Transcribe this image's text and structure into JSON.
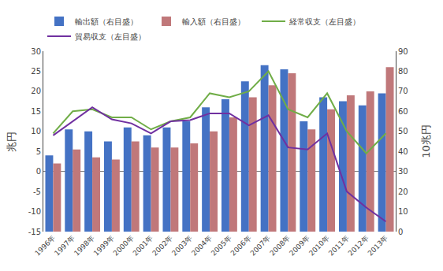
{
  "chart_data": {
    "type": "bar",
    "categories": [
      "1996年",
      "1997年",
      "1998年",
      "1999年",
      "2000年",
      "2001年",
      "2002年",
      "2003年",
      "2004年",
      "2005年",
      "2006年",
      "2007年",
      "2008年",
      "2009年",
      "2010年",
      "2011年",
      "2012年",
      "2013年"
    ],
    "series": [
      {
        "name": "輸出額（右目盛）",
        "type": "bar",
        "axis": "y2",
        "color": "#4472C4",
        "values": [
          38,
          51,
          50,
          45,
          52,
          48,
          52,
          55,
          62,
          66,
          75,
          83,
          81,
          55,
          67,
          65,
          63,
          69
        ]
      },
      {
        "name": "輸入額（右目盛）",
        "type": "bar",
        "axis": "y2",
        "color": "#C0787A",
        "values": [
          34,
          41,
          37,
          36,
          45,
          42,
          42,
          44,
          50,
          57,
          67,
          73,
          79,
          51,
          61,
          68,
          70,
          82
        ]
      },
      {
        "name": "経常収支（左目盛）",
        "type": "line",
        "color": "#70AD47",
        "values": [
          9.5,
          15.0,
          15.5,
          13.5,
          13.5,
          10.5,
          12.5,
          13.5,
          19.5,
          18.5,
          20.0,
          25.0,
          15.5,
          13.5,
          19.5,
          10.0,
          4.5,
          9.5
        ]
      },
      {
        "name": "貿易収支（左目盛）",
        "type": "line",
        "color": "#7030A0",
        "values": [
          9.0,
          12.5,
          16.0,
          13.0,
          12.0,
          9.5,
          12.5,
          12.8,
          14.5,
          14.5,
          11.5,
          14.0,
          6.0,
          5.5,
          9.5,
          -5.0,
          -9.0,
          -12.5
        ]
      }
    ],
    "ylabel": "兆円",
    "y2label": "10兆円",
    "ylim": [
      -15,
      30
    ],
    "yticks": [
      -15,
      -10,
      -5,
      0,
      5,
      10,
      15,
      20,
      25,
      30
    ],
    "y2lim": [
      0,
      90
    ],
    "y2ticks": [
      0,
      10,
      20,
      30,
      40,
      50,
      60,
      70,
      80,
      90
    ],
    "legend": "upper left",
    "grid": false
  }
}
